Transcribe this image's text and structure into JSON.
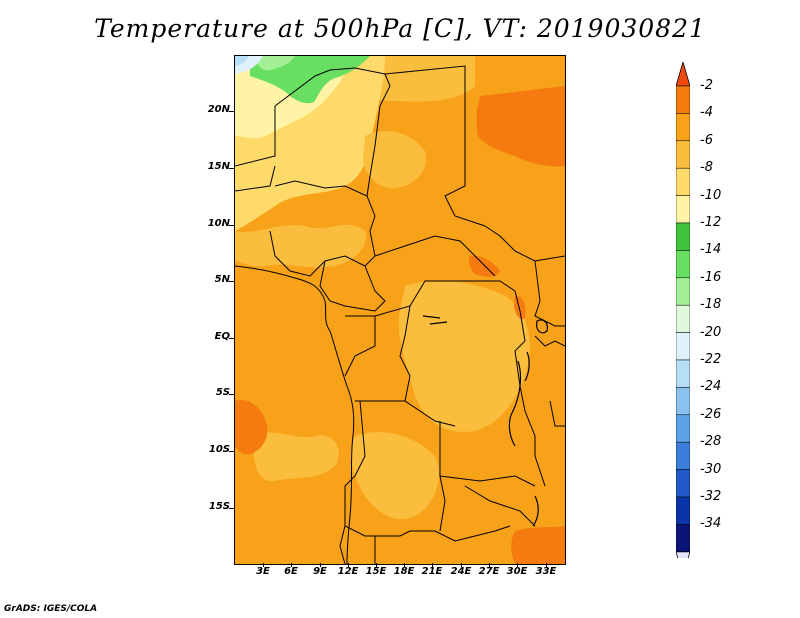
{
  "title": "Temperature at 500hPa [C], VT: 2019030821",
  "credit": "GrADS: IGES/COLA",
  "y_ticks": [
    "20N",
    "15N",
    "10N",
    "5N",
    "EQ",
    "5S",
    "10S",
    "15S"
  ],
  "x_ticks": [
    "3E",
    "6E",
    "9E",
    "12E",
    "15E",
    "18E",
    "21E",
    "24E",
    "27E",
    "30E",
    "33E"
  ],
  "legend": {
    "labels": [
      "-2",
      "-4",
      "-6",
      "-8",
      "-10",
      "-12",
      "-14",
      "-16",
      "-18",
      "-20",
      "-22",
      "-24",
      "-26",
      "-28",
      "-30",
      "-32",
      "-34"
    ],
    "colors": [
      "#f04a0e",
      "#f57b10",
      "#f8a21a",
      "#fbbd3d",
      "#fdda6a",
      "#fff3a5",
      "#3ec43d",
      "#69df62",
      "#a3ef96",
      "#def9dc",
      "#dff2fb",
      "#b6def5",
      "#89c2ee",
      "#5ba2e6",
      "#3c7edc",
      "#2159c9",
      "#0a35aa",
      "#0b1577",
      "#e1e5fb"
    ]
  },
  "chart_data": {
    "type": "heatmap",
    "title": "Temperature at 500hPa [C], VT: 2019030821",
    "variable": "Temperature at 500hPa",
    "units": "C",
    "valid_time": "2019030821",
    "x_ticks": [
      "3E",
      "6E",
      "9E",
      "12E",
      "15E",
      "18E",
      "21E",
      "24E",
      "27E",
      "30E",
      "33E"
    ],
    "y_ticks": [
      "20N",
      "15N",
      "10N",
      "5N",
      "EQ",
      "5S",
      "10S",
      "15S"
    ],
    "colorbar_levels": [
      -2,
      -4,
      -6,
      -8,
      -10,
      -12,
      -14,
      -16,
      -18,
      -20,
      -22,
      -24,
      -26,
      -28,
      -30,
      -32,
      -34
    ]
  }
}
